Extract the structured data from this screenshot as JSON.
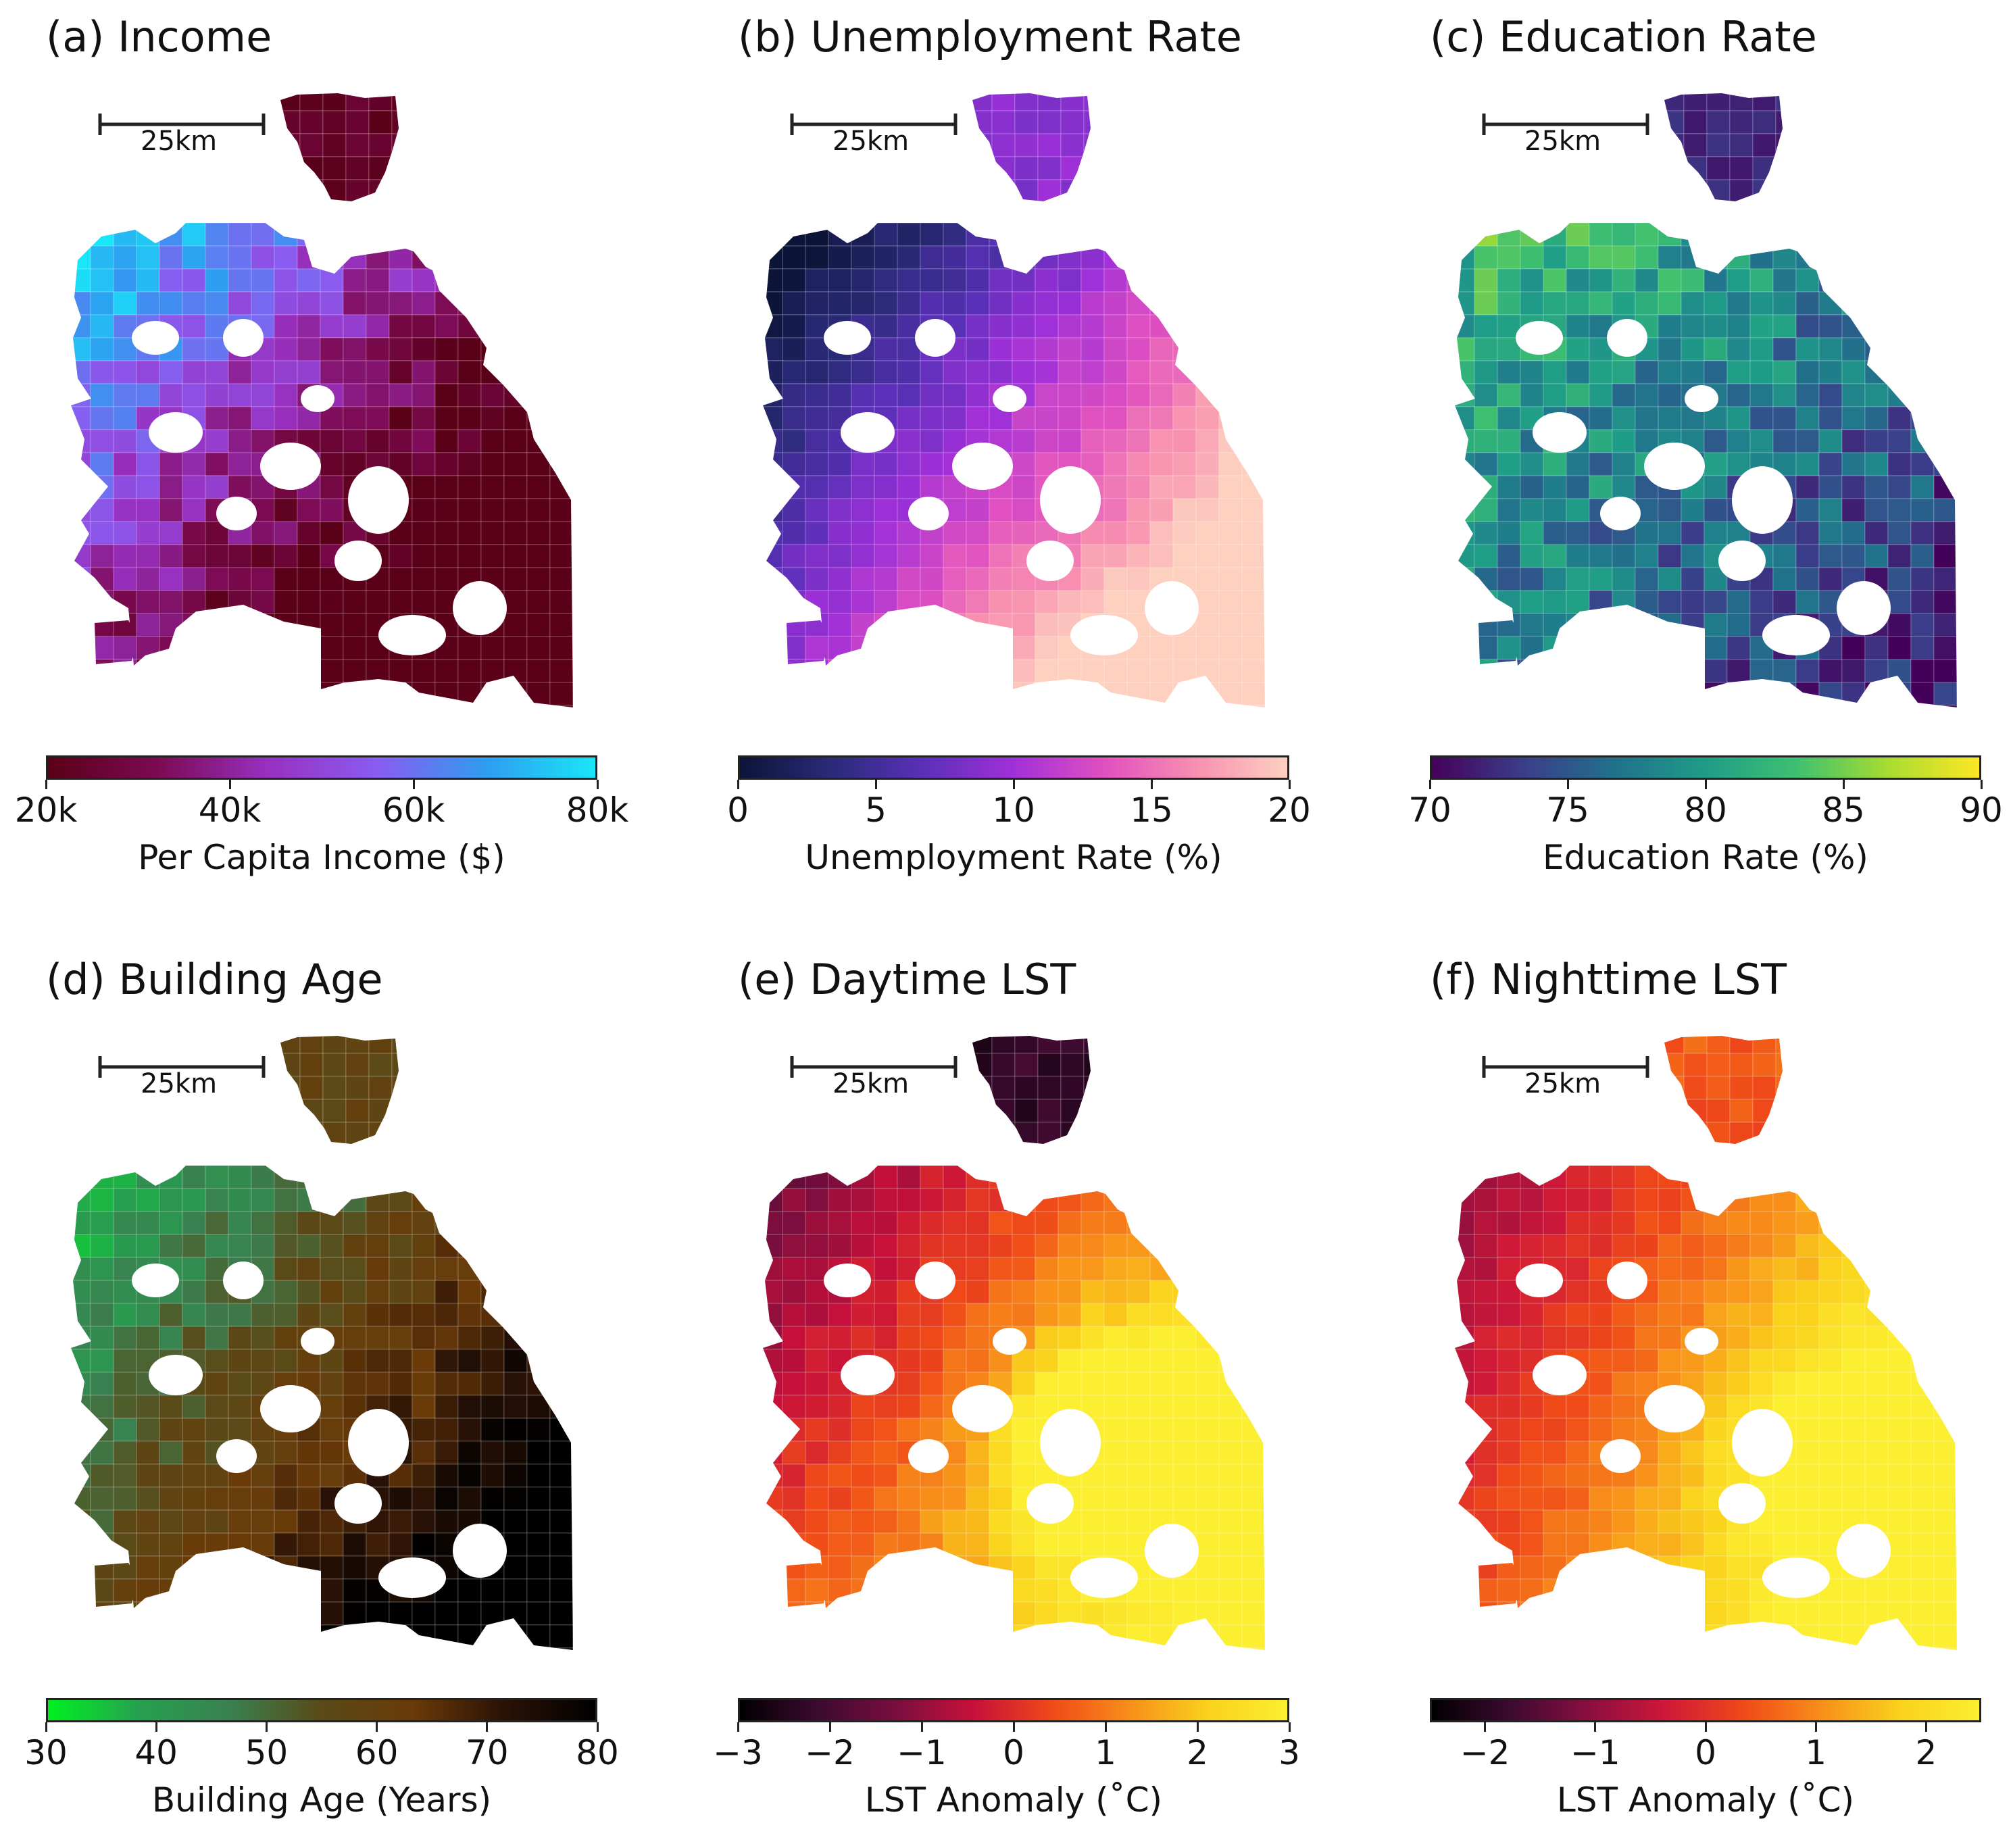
{
  "scale_bar_label": "25km",
  "panels": [
    {
      "id": "a",
      "title": "(a) Income",
      "colorbar_label": "Per Capita Income ($)",
      "range": [
        20000,
        80000
      ],
      "ticks": [
        {
          "value": 20000,
          "label": "20k"
        },
        {
          "value": 40000,
          "label": "40k"
        },
        {
          "value": 60000,
          "label": "60k"
        },
        {
          "value": 80000,
          "label": "80k"
        }
      ],
      "colormap": [
        "#5a0018",
        "#7c0a52",
        "#9830c0",
        "#8a5cf0",
        "#2f9cf0",
        "#19e6f8"
      ],
      "north_level": 0.05,
      "field": {
        "base": 0.35,
        "weights": [
          -0.55,
          -0.15,
          0.65,
          0.25,
          -0.45,
          0.1
        ],
        "amp": 0.3
      }
    },
    {
      "id": "b",
      "title": "(b) Unemployment Rate",
      "colorbar_label": "Unemployment Rate (%)",
      "range": [
        0,
        20
      ],
      "ticks": [
        {
          "value": 0,
          "label": "0"
        },
        {
          "value": 5,
          "label": "5"
        },
        {
          "value": 10,
          "label": "10"
        },
        {
          "value": 15,
          "label": "15"
        },
        {
          "value": 20,
          "label": "20"
        }
      ],
      "colormap": [
        "#0c1438",
        "#2a2a78",
        "#5a30b8",
        "#a030d8",
        "#e050c0",
        "#f890b0",
        "#fdd0c0"
      ],
      "north_level": 0.45,
      "field": {
        "base": 0.2,
        "weights": [
          0.5,
          0.3,
          -0.25,
          0.0,
          0.6,
          -0.1
        ],
        "amp": 0.08
      }
    },
    {
      "id": "c",
      "title": "(c) Education Rate",
      "colorbar_label": "Education Rate (%)",
      "range": [
        70,
        90
      ],
      "ticks": [
        {
          "value": 70,
          "label": "70"
        },
        {
          "value": 75,
          "label": "75"
        },
        {
          "value": 80,
          "label": "80"
        },
        {
          "value": 85,
          "label": "85"
        },
        {
          "value": 90,
          "label": "90"
        }
      ],
      "colormap": [
        "#44015a",
        "#3b3d8a",
        "#21718c",
        "#1f9c88",
        "#3ec070",
        "#a8dc30",
        "#fde724"
      ],
      "north_level": 0.1,
      "field": {
        "base": 0.45,
        "weights": [
          -0.2,
          -0.1,
          0.2,
          0.1,
          -0.15,
          0.0
        ],
        "amp": 0.35
      }
    },
    {
      "id": "d",
      "title": "(d) Building Age",
      "colorbar_label": "Building Age (Years)",
      "range": [
        30,
        80
      ],
      "ticks": [
        {
          "value": 30,
          "label": "30"
        },
        {
          "value": 40,
          "label": "40"
        },
        {
          "value": 50,
          "label": "50"
        },
        {
          "value": 60,
          "label": "60"
        },
        {
          "value": 70,
          "label": "70"
        },
        {
          "value": 80,
          "label": "80"
        }
      ],
      "colormap": [
        "#00f020",
        "#26a050",
        "#3a8050",
        "#5a4a18",
        "#6a3a08",
        "#2a1206",
        "#000000"
      ],
      "north_level": 0.55,
      "field": {
        "base": 0.3,
        "weights": [
          0.45,
          0.25,
          -0.2,
          0.0,
          0.35,
          -0.05
        ],
        "amp": 0.18
      }
    },
    {
      "id": "e",
      "title": "(e) Daytime LST",
      "colorbar_label": "LST Anomaly ($^\\circ$C)",
      "colorbar_label_display": "LST Anomaly (˚C)",
      "range": [
        -3,
        3
      ],
      "ticks": [
        {
          "value": -3,
          "label": "−3"
        },
        {
          "value": -2,
          "label": "−2"
        },
        {
          "value": -1,
          "label": "−1"
        },
        {
          "value": 0,
          "label": "0"
        },
        {
          "value": 1,
          "label": "1"
        },
        {
          "value": 2,
          "label": "2"
        },
        {
          "value": 3,
          "label": "3"
        }
      ],
      "colormap": [
        "#000000",
        "#3c0a30",
        "#7a0e3e",
        "#c8103a",
        "#f04a18",
        "#f8901a",
        "#fad21c",
        "#fcee30"
      ],
      "north_level": 0.12,
      "field": {
        "base": 0.45,
        "weights": [
          0.35,
          0.2,
          -0.2,
          0.05,
          0.1,
          0.55
        ],
        "amp": 0.08
      }
    },
    {
      "id": "f",
      "title": "(f) Nighttime LST",
      "colorbar_label_display": "LST Anomaly (˚C)",
      "range": [
        -2.5,
        2.5
      ],
      "ticks": [
        {
          "value": -2,
          "label": "−2"
        },
        {
          "value": -1,
          "label": "−1"
        },
        {
          "value": 0,
          "label": "0"
        },
        {
          "value": 1,
          "label": "1"
        },
        {
          "value": 2,
          "label": "2"
        }
      ],
      "colormap": [
        "#000000",
        "#3c0a30",
        "#8a0e40",
        "#d01838",
        "#f04a18",
        "#f8901a",
        "#fad21c",
        "#fcee30"
      ],
      "north_level": 0.6,
      "field": {
        "base": 0.45,
        "weights": [
          0.5,
          0.15,
          -0.15,
          0.0,
          0.15,
          0.2
        ],
        "amp": 0.06
      }
    }
  ]
}
